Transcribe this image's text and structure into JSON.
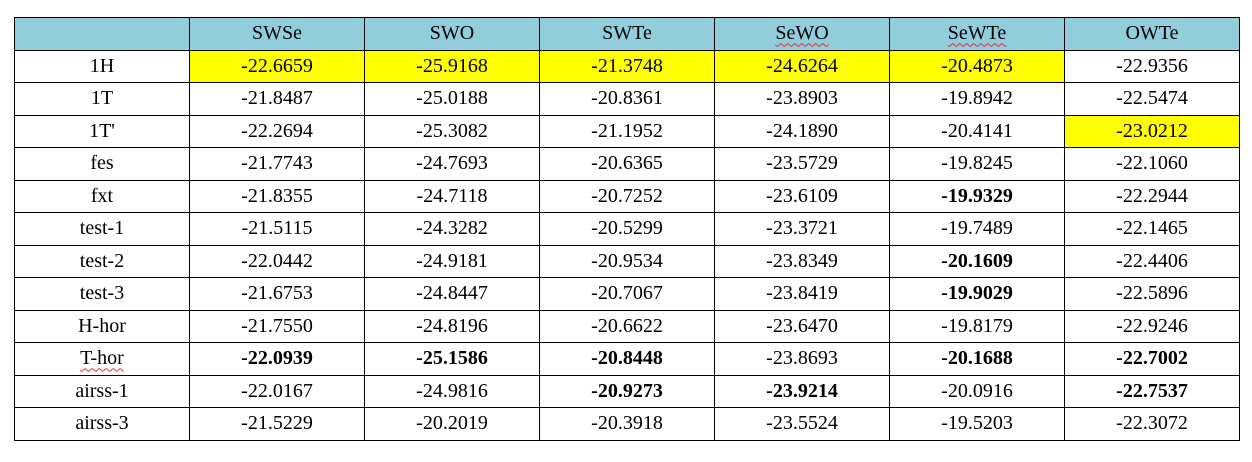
{
  "table": {
    "columns": [
      "",
      "SWSe",
      "SWO",
      "SWTe",
      "SeWO",
      "SeWTe",
      "OWTe"
    ],
    "rows": [
      {
        "label": "1H",
        "values": [
          "-22.6659",
          "-25.9168",
          "-21.3748",
          "-24.6264",
          "-20.4873",
          "-22.9356"
        ]
      },
      {
        "label": "1T",
        "values": [
          "-21.8487",
          "-25.0188",
          "-20.8361",
          "-23.8903",
          "-19.8942",
          "-22.5474"
        ]
      },
      {
        "label": "1T'",
        "values": [
          "-22.2694",
          "-25.3082",
          "-21.1952",
          "-24.1890",
          "-20.4141",
          "-23.0212"
        ]
      },
      {
        "label": "fes",
        "values": [
          "-21.7743",
          "-24.7693",
          "-20.6365",
          "-23.5729",
          "-19.8245",
          "-22.1060"
        ]
      },
      {
        "label": "fxt",
        "values": [
          "-21.8355",
          "-24.7118",
          "-20.7252",
          "-23.6109",
          "-19.9329",
          "-22.2944"
        ]
      },
      {
        "label": "test-1",
        "values": [
          "-21.5115",
          "-24.3282",
          "-20.5299",
          "-23.3721",
          "-19.7489",
          "-22.1465"
        ]
      },
      {
        "label": "test-2",
        "values": [
          "-22.0442",
          "-24.9181",
          "-20.9534",
          "-23.8349",
          "-20.1609",
          "-22.4406"
        ]
      },
      {
        "label": "test-3",
        "values": [
          "-21.6753",
          "-24.8447",
          "-20.7067",
          "-23.8419",
          "-19.9029",
          "-22.5896"
        ]
      },
      {
        "label": "H-hor",
        "values": [
          "-21.7550",
          "-24.8196",
          "-20.6622",
          "-23.6470",
          "-19.8179",
          "-22.9246"
        ]
      },
      {
        "label": "T-hor",
        "values": [
          "-22.0939",
          "-25.1586",
          "-20.8448",
          "-23.8693",
          "-20.1688",
          "-22.7002"
        ]
      },
      {
        "label": "airss-1",
        "values": [
          "-22.0167",
          "-24.9816",
          "-20.9273",
          "-23.9214",
          "-20.0916",
          "-22.7537"
        ]
      },
      {
        "label": "airss-3",
        "values": [
          "-21.5229",
          "-20.2019",
          "-20.3918",
          "-23.5524",
          "-19.5203",
          "-22.3072"
        ]
      }
    ],
    "highlight_color": "#ffff00",
    "header_color": "#92cddc",
    "highlighted_cells": [
      [
        0,
        0
      ],
      [
        0,
        1
      ],
      [
        0,
        2
      ],
      [
        0,
        3
      ],
      [
        0,
        4
      ],
      [
        2,
        5
      ]
    ],
    "bold_cells": [
      [
        4,
        4
      ],
      [
        6,
        4
      ],
      [
        7,
        4
      ],
      [
        9,
        0
      ],
      [
        9,
        1
      ],
      [
        9,
        2
      ],
      [
        9,
        4
      ],
      [
        9,
        5
      ],
      [
        10,
        2
      ],
      [
        10,
        3
      ],
      [
        10,
        5
      ]
    ],
    "spellcheck_underlined": {
      "header_columns": [
        4,
        5
      ],
      "row_labels": [
        9
      ]
    }
  }
}
